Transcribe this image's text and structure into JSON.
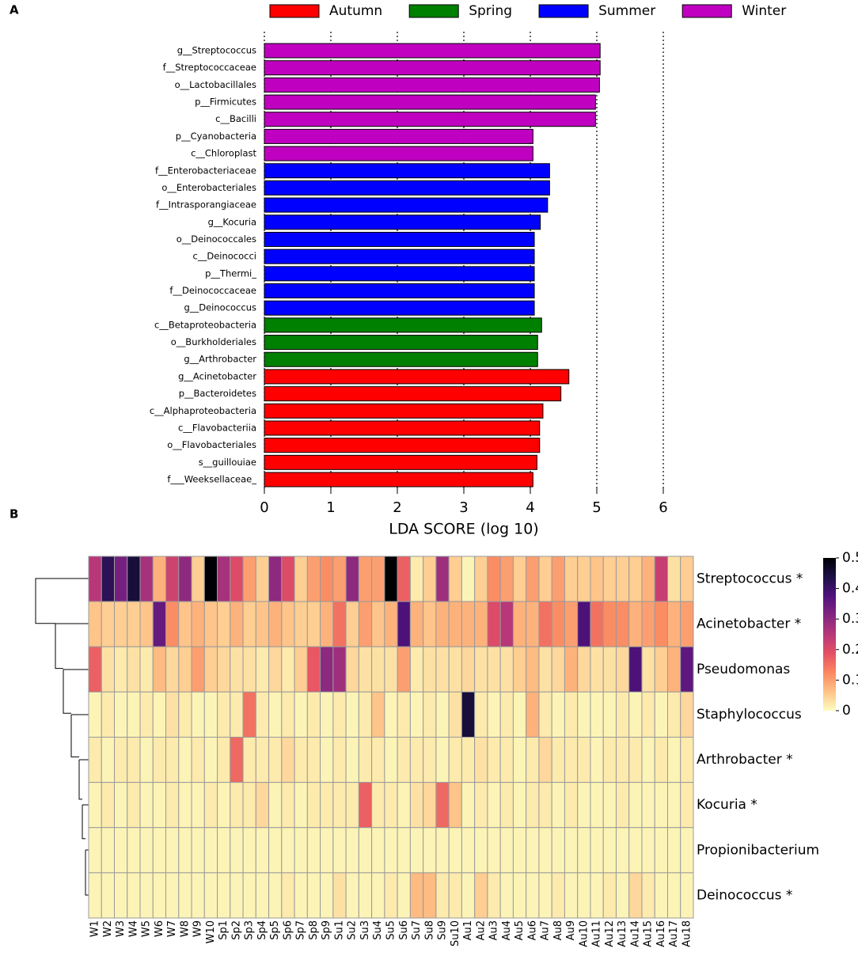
{
  "chart_data": [
    {
      "type": "bar",
      "panel": "A",
      "orientation": "horizontal",
      "categories": [
        "g__Streptococcus",
        "f__Streptococcaceae",
        "o__Lactobacillales",
        "p__Firmicutes",
        "c__Bacilli",
        "p__Cyanobacteria",
        "c__Chloroplast",
        "f__Enterobacteriaceae",
        "o__Enterobacteriales",
        "f__Intrasporangiaceae",
        "g__Kocuria",
        "o__Deinococcales",
        "c__Deinococci",
        "p__Thermi_",
        "f__Deinococcaceae",
        "g__Deinococcus",
        "c__Betaproteobacteria",
        "o__Burkholderiales",
        "g__Arthrobacter",
        "g__Acinetobacter",
        "p__Bacteroidetes",
        "c__Alphaproteobacteria",
        "c__Flavobacteriia",
        "o__Flavobacteriales",
        "s__guillouiae",
        "f___Weeksellaceae_"
      ],
      "series": [
        {
          "name": "Autumn",
          "color": "#ff0000",
          "values": [
            null,
            null,
            null,
            null,
            null,
            null,
            null,
            null,
            null,
            null,
            null,
            null,
            null,
            null,
            null,
            null,
            null,
            null,
            null,
            4.58,
            4.46,
            4.19,
            4.14,
            4.14,
            4.1,
            4.04
          ]
        },
        {
          "name": "Spring",
          "color": "#008000",
          "values": [
            null,
            null,
            null,
            null,
            null,
            null,
            null,
            null,
            null,
            null,
            null,
            null,
            null,
            null,
            null,
            null,
            4.17,
            4.11,
            4.11,
            null,
            null,
            null,
            null,
            null,
            null,
            null
          ]
        },
        {
          "name": "Summer",
          "color": "#0000ff",
          "values": [
            null,
            null,
            null,
            null,
            null,
            null,
            null,
            4.29,
            4.29,
            4.26,
            4.15,
            4.06,
            4.06,
            4.06,
            4.06,
            4.06,
            null,
            null,
            null,
            null,
            null,
            null,
            null,
            null,
            null,
            null
          ]
        },
        {
          "name": "Winter",
          "color": "#c000c0",
          "values": [
            5.05,
            5.05,
            5.04,
            4.98,
            4.98,
            4.04,
            4.04,
            null,
            null,
            null,
            null,
            null,
            null,
            null,
            null,
            null,
            null,
            null,
            null,
            null,
            null,
            null,
            null,
            null,
            null,
            null
          ]
        }
      ],
      "xlabel": "LDA SCORE (log 10)",
      "xlim": [
        0,
        6
      ],
      "xticks": [
        0,
        1,
        2,
        3,
        4,
        5,
        6
      ],
      "grid": true,
      "legend": "top"
    },
    {
      "type": "heatmap",
      "panel": "B",
      "categories": [
        "W1",
        "W2",
        "W3",
        "W4",
        "W5",
        "W6",
        "W7",
        "W8",
        "W9",
        "W10",
        "Sp1",
        "Sp2",
        "Sp3",
        "Sp4",
        "Sp5",
        "Sp6",
        "Sp7",
        "Sp8",
        "Sp9",
        "Su1",
        "Su2",
        "Su3",
        "Su4",
        "Su5",
        "Su6",
        "Su7",
        "Su8",
        "Su9",
        "Su10",
        "Au1",
        "Au2",
        "Au3",
        "Au4",
        "Au5",
        "Au6",
        "Au7",
        "Au8",
        "Au9",
        "Au10",
        "Au11",
        "Au12",
        "Au13",
        "Au14",
        "Au15",
        "Au16",
        "Au17",
        "Au18"
      ],
      "rows": [
        "Streptococcus *",
        "Acinetobacter *",
        "Pseudomonas",
        "Staphylococcus",
        "Arthrobacter *",
        "Kocuria *",
        "Propionibacterium",
        "Deinococcus *"
      ],
      "values": [
        [
          0.25,
          0.42,
          0.33,
          0.45,
          0.27,
          0.08,
          0.22,
          0.3,
          0.05,
          0.5,
          0.27,
          0.2,
          0.1,
          0.05,
          0.3,
          0.2,
          0.05,
          0.1,
          0.12,
          0.1,
          0.3,
          0.1,
          0.1,
          0.5,
          0.17,
          0.02,
          0.05,
          0.28,
          0.05,
          0.01,
          0.05,
          0.12,
          0.1,
          0.05,
          0.1,
          0.05,
          0.1,
          0.05,
          0.05,
          0.06,
          0.05,
          0.05,
          0.05,
          0.08,
          0.23,
          0.03,
          0.05
        ],
        [
          0.06,
          0.05,
          0.05,
          0.05,
          0.06,
          0.35,
          0.12,
          0.06,
          0.08,
          0.06,
          0.05,
          0.08,
          0.05,
          0.06,
          0.08,
          0.06,
          0.05,
          0.05,
          0.08,
          0.15,
          0.05,
          0.1,
          0.06,
          0.08,
          0.38,
          0.08,
          0.06,
          0.08,
          0.08,
          0.08,
          0.08,
          0.2,
          0.25,
          0.08,
          0.08,
          0.15,
          0.12,
          0.1,
          0.38,
          0.15,
          0.12,
          0.12,
          0.08,
          0.1,
          0.12,
          0.08,
          0.1
        ],
        [
          0.17,
          0.03,
          0.02,
          0.03,
          0.02,
          0.07,
          0.04,
          0.05,
          0.1,
          0.05,
          0.04,
          0.03,
          0.03,
          0.02,
          0.04,
          0.02,
          0.05,
          0.18,
          0.3,
          0.28,
          0.04,
          0.03,
          0.03,
          0.03,
          0.1,
          0.02,
          0.03,
          0.03,
          0.03,
          0.04,
          0.03,
          0.03,
          0.03,
          0.05,
          0.07,
          0.03,
          0.04,
          0.08,
          0.04,
          0.03,
          0.03,
          0.04,
          0.38,
          0.03,
          0.05,
          0.08,
          0.36
        ],
        [
          0.01,
          0.02,
          0.01,
          0.01,
          0.02,
          0.01,
          0.03,
          0.02,
          0.01,
          0.01,
          0.02,
          0.02,
          0.15,
          0.02,
          0.01,
          0.02,
          0.01,
          0.02,
          0.01,
          0.02,
          0.01,
          0.02,
          0.06,
          0.01,
          0.02,
          0.01,
          0.02,
          0.01,
          0.03,
          0.45,
          0.02,
          0.01,
          0.02,
          0.01,
          0.08,
          0.02,
          0.01,
          0.02,
          0.01,
          0.01,
          0.01,
          0.02,
          0.01,
          0.02,
          0.01,
          0.02,
          0.04
        ],
        [
          0.02,
          0.01,
          0.02,
          0.02,
          0.01,
          0.02,
          0.02,
          0.01,
          0.02,
          0.01,
          0.02,
          0.16,
          0.02,
          0.02,
          0.02,
          0.04,
          0.02,
          0.02,
          0.01,
          0.02,
          0.01,
          0.02,
          0.02,
          0.01,
          0.02,
          0.02,
          0.02,
          0.01,
          0.02,
          0.02,
          0.03,
          0.02,
          0.02,
          0.01,
          0.02,
          0.04,
          0.02,
          0.02,
          0.02,
          0.01,
          0.02,
          0.02,
          0.02,
          0.01,
          0.02,
          0.01,
          0.02
        ],
        [
          0.01,
          0.02,
          0.01,
          0.02,
          0.01,
          0.01,
          0.02,
          0.01,
          0.01,
          0.02,
          0.01,
          0.02,
          0.02,
          0.04,
          0.01,
          0.02,
          0.01,
          0.02,
          0.02,
          0.02,
          0.02,
          0.17,
          0.02,
          0.02,
          0.01,
          0.03,
          0.04,
          0.16,
          0.06,
          0.01,
          0.02,
          0.01,
          0.02,
          0.01,
          0.02,
          0.02,
          0.01,
          0.02,
          0.01,
          0.01,
          0.01,
          0.02,
          0.01,
          0.01,
          0.01,
          0.01,
          0.02
        ],
        [
          0.01,
          0.01,
          0.01,
          0.01,
          0.01,
          0.01,
          0.01,
          0.01,
          0.01,
          0.01,
          0.01,
          0.01,
          0.01,
          0.01,
          0.01,
          0.01,
          0.01,
          0.01,
          0.01,
          0.01,
          0.01,
          0.01,
          0.01,
          0.01,
          0.01,
          0.01,
          0.01,
          0.01,
          0.01,
          0.01,
          0.01,
          0.01,
          0.01,
          0.01,
          0.01,
          0.01,
          0.01,
          0.01,
          0.01,
          0.01,
          0.01,
          0.01,
          0.01,
          0.01,
          0.01,
          0.01,
          0.01
        ],
        [
          0.01,
          0.01,
          0.01,
          0.01,
          0.01,
          0.01,
          0.01,
          0.01,
          0.01,
          0.01,
          0.01,
          0.01,
          0.01,
          0.01,
          0.01,
          0.02,
          0.01,
          0.01,
          0.01,
          0.03,
          0.01,
          0.01,
          0.01,
          0.02,
          0.01,
          0.07,
          0.07,
          0.02,
          0.02,
          0.01,
          0.05,
          0.02,
          0.01,
          0.01,
          0.01,
          0.01,
          0.02,
          0.01,
          0.01,
          0.01,
          0.02,
          0.01,
          0.04,
          0.02,
          0.01,
          0.01,
          0.01
        ]
      ],
      "zlim": [
        0,
        0.5
      ],
      "colorbar_ticks": [
        0,
        0.1,
        0.2,
        0.3,
        0.4,
        0.5
      ],
      "colorscale": [
        "#fcfdbf",
        "#fec287",
        "#fb8861",
        "#e55064",
        "#b73779",
        "#832681",
        "#51127c",
        "#1d1147",
        "#000004"
      ]
    }
  ]
}
